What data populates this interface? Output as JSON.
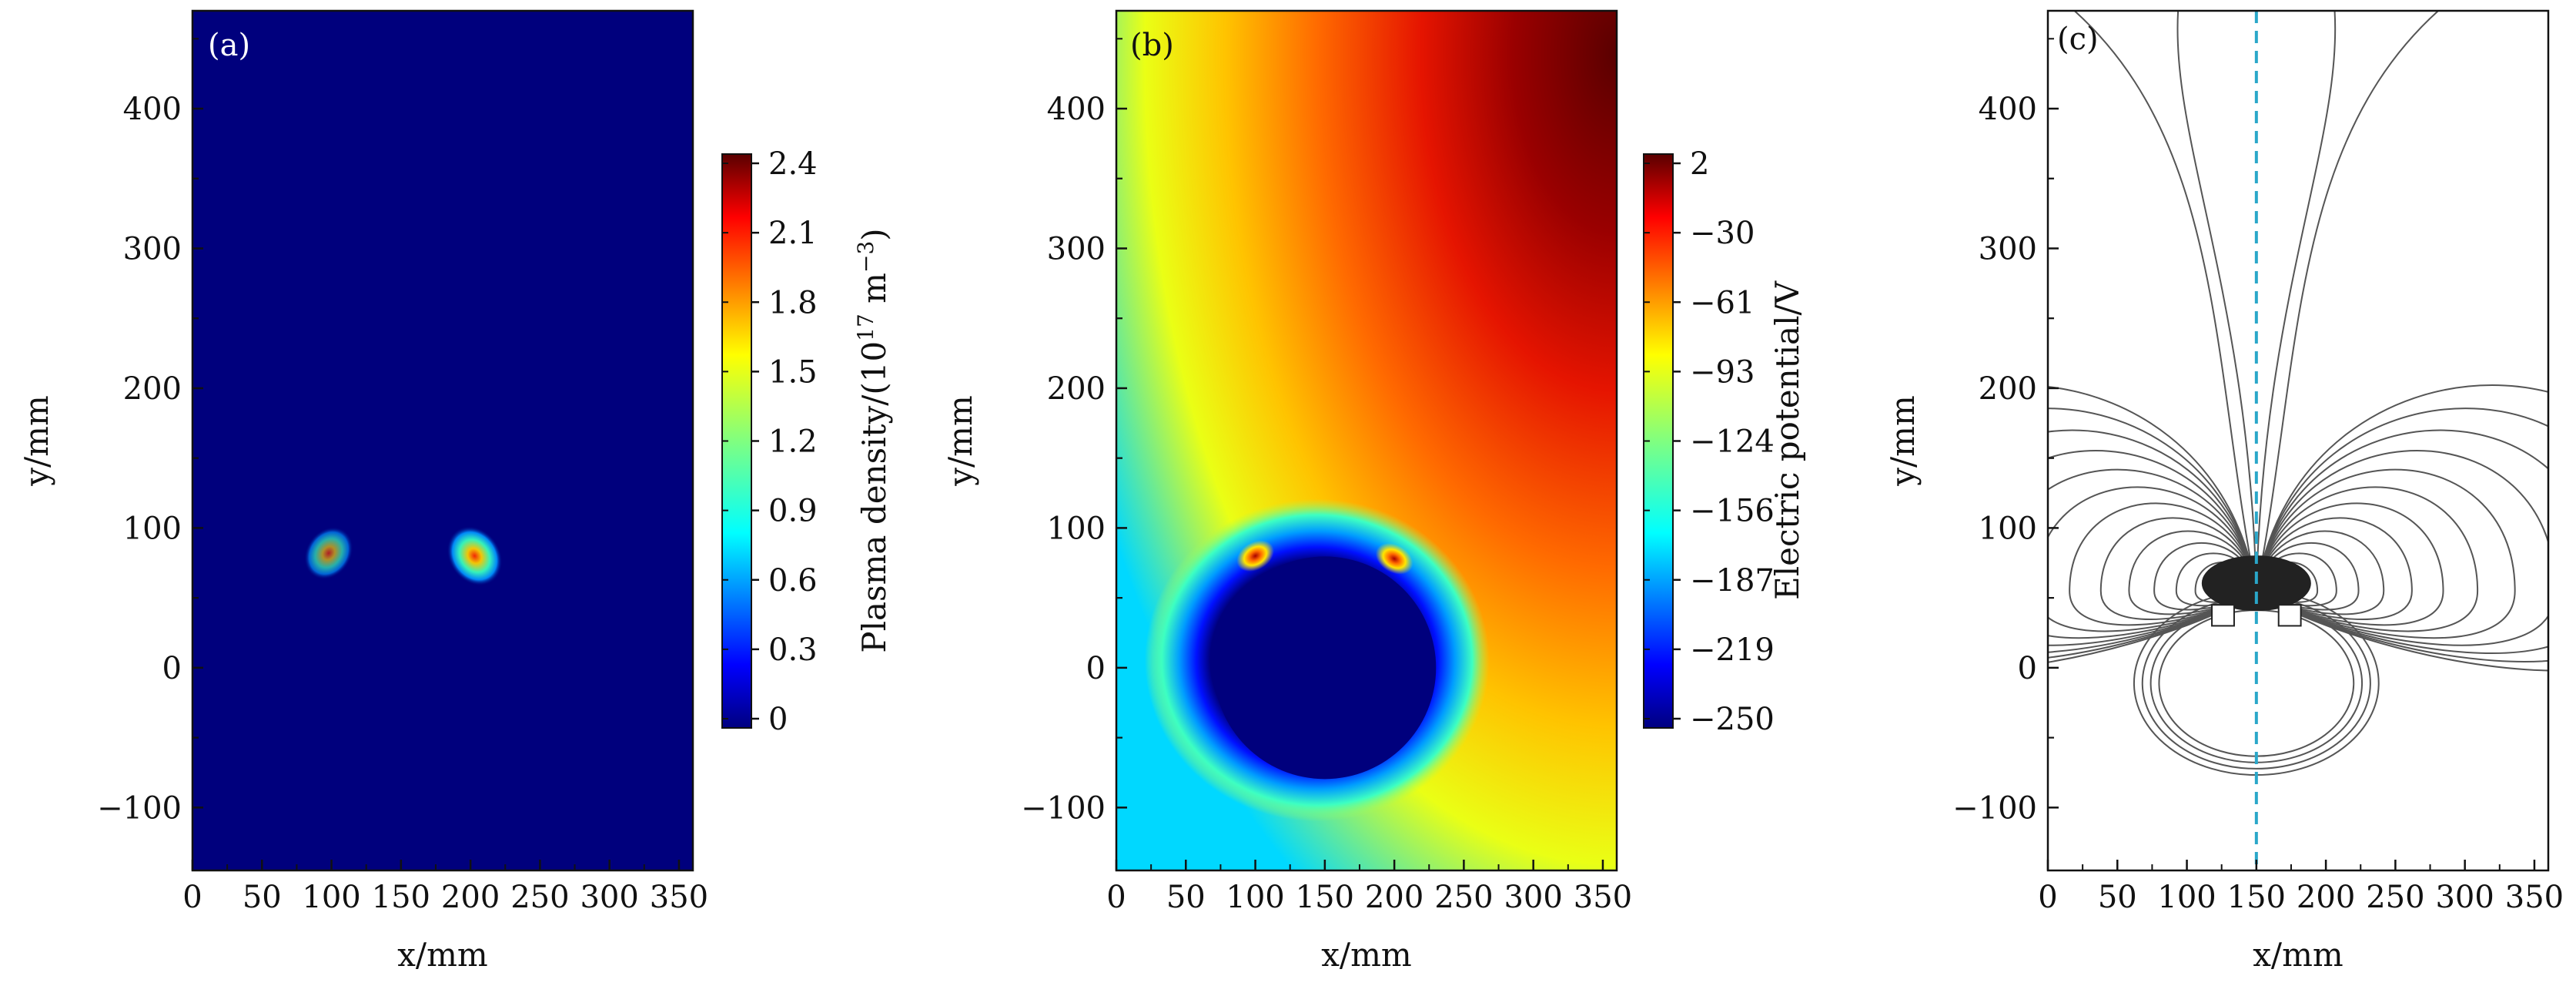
{
  "chart_data": [
    {
      "panel": "(a)",
      "type": "heatmap",
      "xlabel": "x/mm",
      "ylabel": "y/mm",
      "xlim": [
        0,
        360
      ],
      "ylim": [
        -145,
        470
      ],
      "xticks": [
        0,
        50,
        100,
        150,
        200,
        250,
        300,
        350
      ],
      "yticks": [
        -100,
        0,
        100,
        200,
        300,
        400
      ],
      "colorbar": {
        "label": "Plasma density/(10",
        "label_exp": "17",
        "label_tail": " m",
        "label_exp2": "−3",
        "label_close": ")",
        "ticks": [
          "0",
          "0.3",
          "0.6",
          "0.9",
          "1.2",
          "1.5",
          "1.8",
          "2.1",
          "2.4"
        ],
        "min": 0,
        "max": 2.5,
        "colormap": "jet"
      },
      "background_value": 0,
      "hotspots": [
        {
          "x": 98,
          "y": 82,
          "peak": 1.3
        },
        {
          "x": 203,
          "y": 80,
          "peak": 2.3
        }
      ]
    },
    {
      "panel": "(b)",
      "type": "heatmap",
      "xlabel": "x/mm",
      "ylabel": "y/mm",
      "xlim": [
        0,
        360
      ],
      "ylim": [
        -145,
        470
      ],
      "xticks": [
        0,
        50,
        100,
        150,
        200,
        250,
        300,
        350
      ],
      "yticks": [
        -100,
        0,
        100,
        200,
        300,
        400
      ],
      "colorbar": {
        "label": "Electric potential/V",
        "ticks": [
          "2",
          "−30",
          "−61",
          "−93",
          "−124",
          "−156",
          "−187",
          "−219",
          "−250"
        ],
        "min": -250,
        "max": 2,
        "colormap": "jet"
      },
      "target_circle": {
        "x": 150,
        "y": 0,
        "r": 80,
        "potential": -250
      },
      "hotspots": [
        {
          "x": 100,
          "y": 80
        },
        {
          "x": 200,
          "y": 78
        }
      ]
    },
    {
      "panel": "(c)",
      "type": "line",
      "description_value": "magnetic field lines",
      "xlabel": "x/mm",
      "ylabel": "y/mm",
      "xlim": [
        0,
        360
      ],
      "ylim": [
        -145,
        470
      ],
      "xticks": [
        0,
        50,
        100,
        150,
        200,
        250,
        300,
        350
      ],
      "yticks": [
        -100,
        0,
        100,
        200,
        300,
        400
      ],
      "symmetry_line_x": 150,
      "symmetry_line_color": "#2aa7c9",
      "magnet_center": {
        "x": 150,
        "y": 55
      },
      "magnet_blocks": [
        {
          "x0": 118,
          "x1": 134,
          "y0": 30,
          "y1": 45
        },
        {
          "x0": 166,
          "x1": 182,
          "y0": 30,
          "y1": 45
        }
      ]
    }
  ]
}
